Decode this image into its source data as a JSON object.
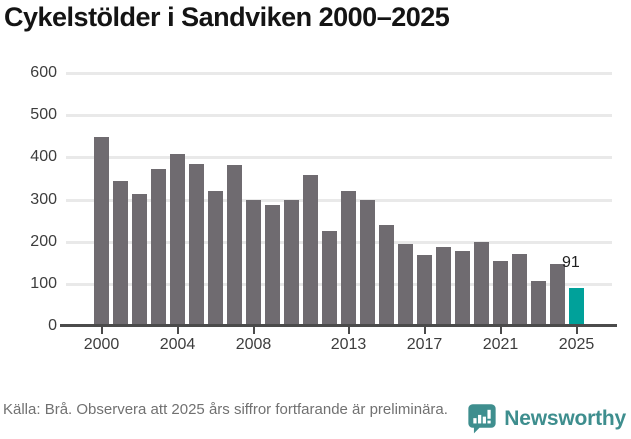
{
  "title": "Cykelstölder i Sandviken 2000–2025",
  "chart_data": {
    "type": "bar",
    "title": "Cykelstölder i Sandviken 2000–2025",
    "x": [
      2000,
      2001,
      2002,
      2003,
      2004,
      2005,
      2006,
      2007,
      2008,
      2009,
      2010,
      2011,
      2012,
      2013,
      2014,
      2015,
      2016,
      2017,
      2018,
      2019,
      2020,
      2021,
      2022,
      2023,
      2024,
      2025
    ],
    "values": [
      448,
      343,
      312,
      373,
      409,
      385,
      320,
      383,
      300,
      287,
      300,
      358,
      225,
      319,
      298,
      239,
      195,
      169,
      188,
      179,
      200,
      155,
      170,
      107,
      147,
      91
    ],
    "highlight_index": 25,
    "highlight_value_label": "91",
    "ylim": [
      0,
      600
    ],
    "yticks": [
      0,
      100,
      200,
      300,
      400,
      500,
      600
    ],
    "xticks": [
      2000,
      2004,
      2008,
      2013,
      2017,
      2021,
      2025
    ],
    "grid": "horizontal",
    "legend": "none",
    "bar_color": "#6f6b70",
    "highlight_color": "#00a19a"
  },
  "footer": {
    "source_note": "Källa: Brå. Observera att 2025 års siffror fortfarande är preliminära."
  },
  "branding": {
    "logo_text": "Newsworthy",
    "logo_color": "#3e8e8e"
  }
}
